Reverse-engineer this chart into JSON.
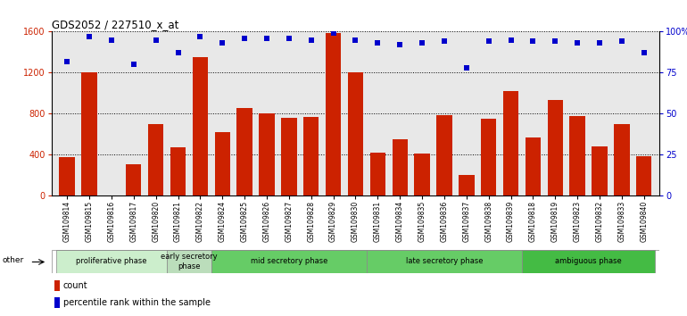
{
  "title": "GDS2052 / 227510_x_at",
  "samples": [
    "GSM109814",
    "GSM109815",
    "GSM109816",
    "GSM109817",
    "GSM109820",
    "GSM109821",
    "GSM109822",
    "GSM109824",
    "GSM109825",
    "GSM109826",
    "GSM109827",
    "GSM109828",
    "GSM109829",
    "GSM109830",
    "GSM109831",
    "GSM109834",
    "GSM109835",
    "GSM109836",
    "GSM109837",
    "GSM109838",
    "GSM109839",
    "GSM109818",
    "GSM109819",
    "GSM109823",
    "GSM109832",
    "GSM109833",
    "GSM109840"
  ],
  "counts": [
    380,
    1200,
    0,
    310,
    700,
    470,
    1350,
    620,
    860,
    800,
    760,
    770,
    1590,
    1200,
    420,
    550,
    410,
    790,
    205,
    750,
    1020,
    570,
    930,
    780,
    480,
    700,
    390
  ],
  "percentile_ranks": [
    82,
    97,
    95,
    80,
    95,
    87,
    97,
    93,
    96,
    96,
    96,
    95,
    99,
    95,
    93,
    92,
    93,
    94,
    78,
    94,
    95,
    94,
    94,
    93,
    93,
    94,
    87
  ],
  "ylim_left": [
    0,
    1600
  ],
  "ylim_right": [
    0,
    100
  ],
  "yticks_left": [
    0,
    400,
    800,
    1200,
    1600
  ],
  "yticks_right": [
    0,
    25,
    50,
    75,
    100
  ],
  "bar_color": "#cc2200",
  "dot_color": "#0000cc",
  "plot_bg_color": "#e8e8e8",
  "phases": [
    {
      "label": "proliferative phase",
      "start": 0,
      "end": 5,
      "color": "#cceecc"
    },
    {
      "label": "early secretory\nphase",
      "start": 5,
      "end": 7,
      "color": "#bbddbb"
    },
    {
      "label": "mid secretory phase",
      "start": 7,
      "end": 14,
      "color": "#66cc66"
    },
    {
      "label": "late secretory phase",
      "start": 14,
      "end": 21,
      "color": "#66cc66"
    },
    {
      "label": "ambiguous phase",
      "start": 21,
      "end": 27,
      "color": "#44bb44"
    }
  ],
  "other_label": "other",
  "legend_count_label": "count",
  "legend_pct_label": "percentile rank within the sample"
}
